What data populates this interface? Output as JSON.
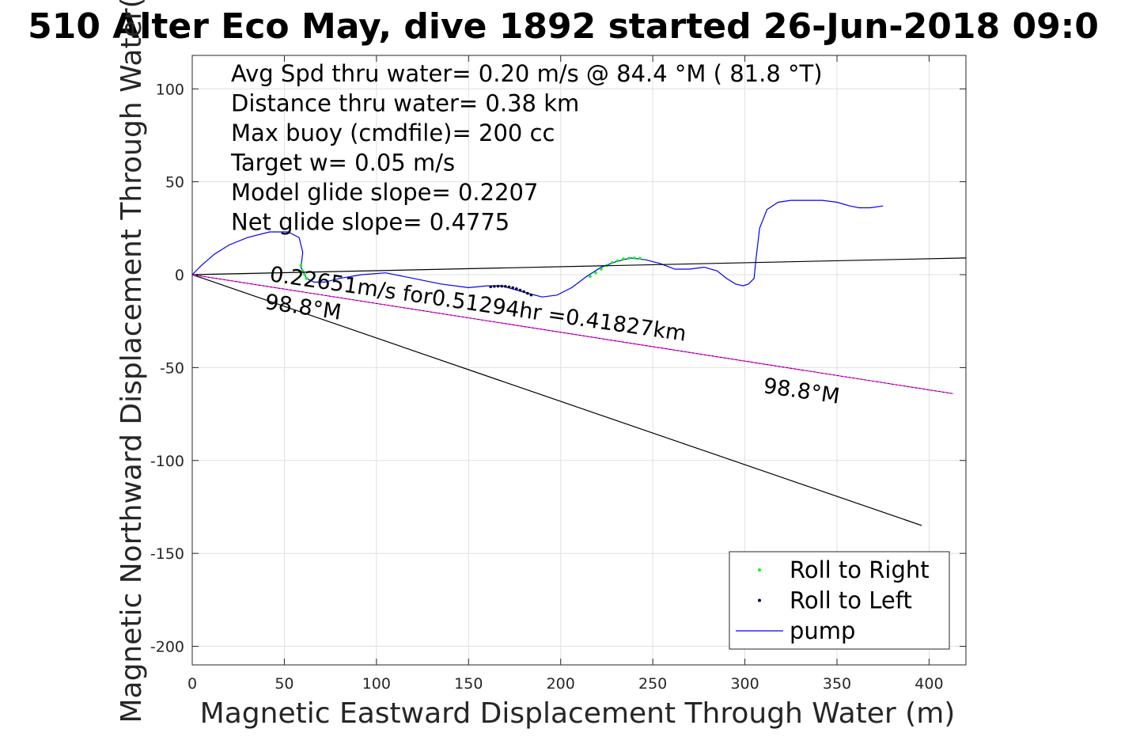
{
  "chart_data": {
    "type": "line",
    "title": "510 Alter Eco May, dive 1892 started 26-Jun-2018 09:0",
    "xlabel": "Magnetic Eastward Displacement Through Water (m)",
    "ylabel": "Magnetic Northward Displacement Through Water(",
    "xlim": [
      0,
      420
    ],
    "ylim": [
      -210,
      118
    ],
    "xticks": [
      0,
      50,
      100,
      150,
      200,
      250,
      300,
      350,
      400
    ],
    "yticks": [
      100,
      50,
      0,
      -50,
      -100,
      -150,
      -200
    ],
    "grid": true,
    "legend_position": "bottom-right",
    "annotations": [
      "Avg Spd thru water=  0.20 m/s @  84.4 °M ( 81.8 °T)",
      "Distance thru water=  0.38 km",
      "Max buoy (cmdfile)= 200 cc",
      "Target w= 0.05 m/s",
      "Model glide slope= 0.2207",
      "Net glide slope= 0.4775"
    ],
    "labels": {
      "current_text": "0.22651m/s for0.51294hr =0.41827km",
      "heading_start": "98.8°M",
      "heading_end": "98.8°M"
    },
    "series": [
      {
        "name": "pump",
        "kind": "line",
        "color": "#0000ff",
        "x": [
          0,
          5,
          12,
          20,
          30,
          42,
          52,
          58,
          60,
          59,
          62,
          66,
          72,
          80,
          92,
          105,
          120,
          135,
          150,
          160,
          168,
          175,
          182,
          190,
          198,
          206,
          214,
          222,
          230,
          238,
          246,
          254,
          262,
          270,
          278,
          285,
          290,
          295,
          299,
          302,
          305,
          306,
          308,
          312,
          318,
          325,
          333,
          342,
          350,
          357,
          362,
          368,
          375
        ],
        "y": [
          0,
          5,
          11,
          16,
          20,
          23,
          23,
          20,
          12,
          4,
          -2,
          -4,
          -4,
          -2,
          0,
          1,
          -2,
          -5,
          -7,
          -6,
          -6,
          -8,
          -10,
          -12,
          -11,
          -7,
          -1,
          4,
          7,
          9,
          8,
          6,
          3,
          3,
          4,
          2,
          -2,
          -5,
          -6,
          -5,
          -2,
          8,
          25,
          35,
          39,
          40,
          40,
          40,
          39,
          37,
          36,
          36,
          37
        ]
      },
      {
        "name": "Roll to Right",
        "kind": "points",
        "color": "#00ff00",
        "x": [
          59,
          60,
          61,
          62,
          216,
          219,
          222,
          225,
          228,
          231,
          234,
          237,
          240,
          243
        ],
        "y": [
          5,
          2,
          0,
          -2,
          -1,
          1,
          3,
          5,
          6.5,
          7.5,
          8.5,
          8.8,
          9,
          8.8
        ]
      },
      {
        "name": "Roll to Left",
        "kind": "points",
        "color": "#000033",
        "x": [
          162,
          164,
          166,
          168,
          170,
          172,
          174,
          176,
          178,
          180,
          182,
          184
        ],
        "y": [
          -6.5,
          -6.3,
          -6.2,
          -6.2,
          -6.3,
          -6.6,
          -7.0,
          -7.6,
          -8.3,
          -9.1,
          -10.0,
          -10.9
        ]
      },
      {
        "name": "",
        "kind": "line",
        "color": "#000000",
        "x": [
          0,
          420
        ],
        "y": [
          0,
          9
        ]
      },
      {
        "name": "",
        "kind": "line",
        "color": "#000000",
        "x": [
          0,
          396
        ],
        "y": [
          0,
          -135
        ]
      },
      {
        "name": "",
        "kind": "line",
        "color": "#ff00ff",
        "x": [
          0,
          413
        ],
        "y": [
          0,
          -64
        ]
      },
      {
        "name": "",
        "kind": "line",
        "color": "#000000",
        "dashed": true,
        "x": [
          0,
          413
        ],
        "y": [
          0,
          -64
        ]
      }
    ],
    "legend": [
      {
        "label": "Roll to Right",
        "marker": "point",
        "color": "#00ff00"
      },
      {
        "label": "Roll to Left",
        "marker": "point",
        "color": "#000033"
      },
      {
        "label": "pump",
        "marker": "line",
        "color": "#0000ff"
      }
    ]
  }
}
